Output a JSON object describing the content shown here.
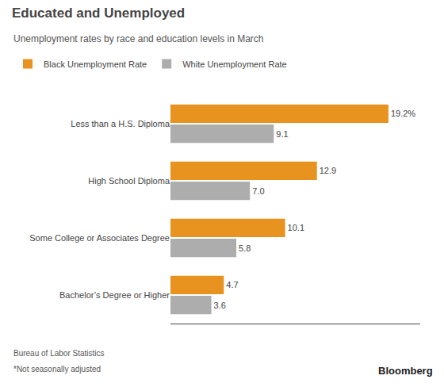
{
  "chart_data": {
    "type": "bar",
    "orientation": "horizontal",
    "title": "Educated and Unemployed",
    "subtitle": "Unemployment rates by race and education levels in March",
    "categories": [
      "Less than a H.S. Diploma",
      "High School Diploma",
      "Some College or Associates Degree",
      "Bachelor’s Degree or Higher"
    ],
    "series": [
      {
        "name": "Black Unemployment Rate",
        "color": "#E8921F",
        "values": [
          19.2,
          12.9,
          10.1,
          4.7
        ],
        "value_labels": [
          "19.2%",
          "12.9",
          "10.1",
          "4.7"
        ]
      },
      {
        "name": "White Unemployment Rate",
        "color": "#ADADAD",
        "values": [
          9.1,
          7.0,
          5.8,
          3.6
        ],
        "value_labels": [
          "9.1",
          "7.0",
          "5.8",
          "3.6"
        ]
      }
    ],
    "xlim": [
      0,
      22
    ],
    "data_labels": true,
    "tick_labels": "y",
    "grid": false,
    "legend": "upper left",
    "annotations": [
      "Bureau of Labor Statistics",
      "*Not seasonally adjusted",
      "Bloomberg"
    ]
  }
}
